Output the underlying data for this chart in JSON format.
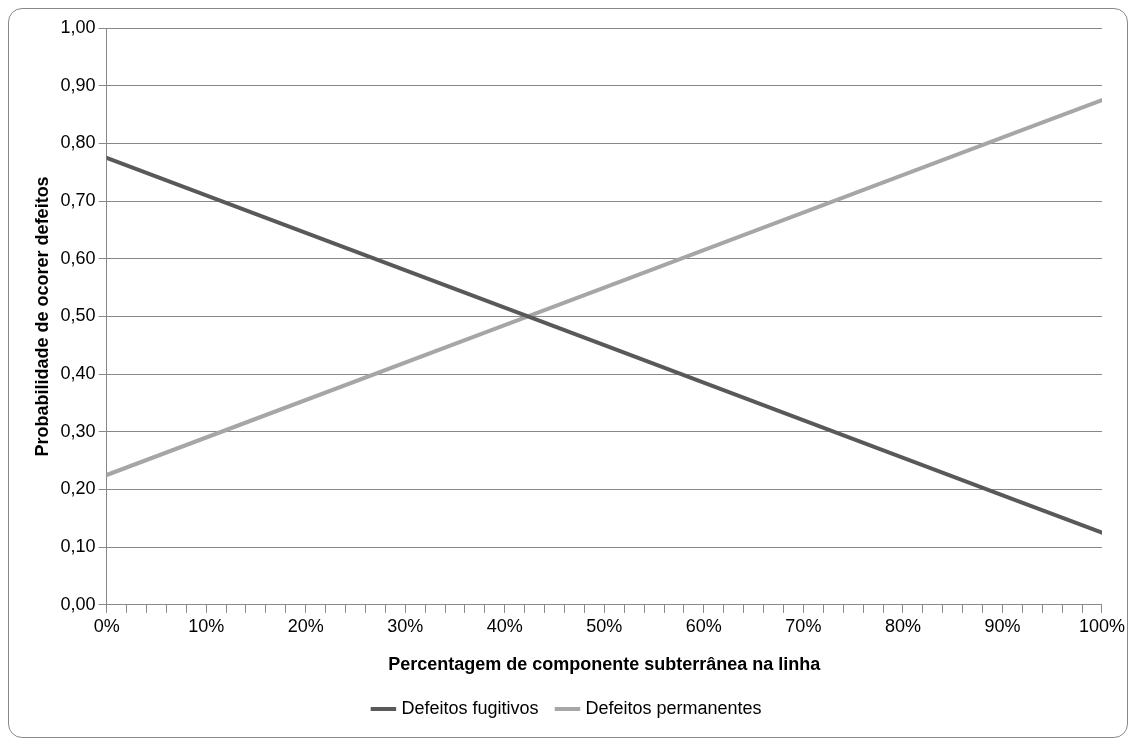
{
  "chart_data": {
    "type": "line",
    "xlabel": "Percentagem de componente subterrânea na linha",
    "ylabel": "Probabilidade de ocorer defeitos",
    "x": [
      0,
      50,
      100
    ],
    "series": [
      {
        "name": "Defeitos fugitivos",
        "color": "#595959",
        "values": [
          0.775,
          0.45,
          0.125
        ]
      },
      {
        "name": "Defeitos permanentes",
        "color": "#a6a6a6",
        "values": [
          0.225,
          0.55,
          0.875
        ]
      }
    ],
    "xlim": [
      0,
      100
    ],
    "xticks": [
      {
        "value": 0,
        "label": "0%"
      },
      {
        "value": 2,
        "label": null
      },
      {
        "value": 4,
        "label": null
      },
      {
        "value": 6,
        "label": null
      },
      {
        "value": 8,
        "label": null
      },
      {
        "value": 10,
        "label": "10%"
      },
      {
        "value": 12,
        "label": null
      },
      {
        "value": 14,
        "label": null
      },
      {
        "value": 16,
        "label": null
      },
      {
        "value": 18,
        "label": null
      },
      {
        "value": 20,
        "label": "20%"
      },
      {
        "value": 22,
        "label": null
      },
      {
        "value": 24,
        "label": null
      },
      {
        "value": 26,
        "label": null
      },
      {
        "value": 28,
        "label": null
      },
      {
        "value": 30,
        "label": "30%"
      },
      {
        "value": 32,
        "label": null
      },
      {
        "value": 34,
        "label": null
      },
      {
        "value": 36,
        "label": null
      },
      {
        "value": 38,
        "label": null
      },
      {
        "value": 40,
        "label": "40%"
      },
      {
        "value": 42,
        "label": null
      },
      {
        "value": 44,
        "label": null
      },
      {
        "value": 46,
        "label": null
      },
      {
        "value": 48,
        "label": null
      },
      {
        "value": 50,
        "label": "50%"
      },
      {
        "value": 52,
        "label": null
      },
      {
        "value": 54,
        "label": null
      },
      {
        "value": 56,
        "label": null
      },
      {
        "value": 58,
        "label": null
      },
      {
        "value": 60,
        "label": "60%"
      },
      {
        "value": 62,
        "label": null
      },
      {
        "value": 64,
        "label": null
      },
      {
        "value": 66,
        "label": null
      },
      {
        "value": 68,
        "label": null
      },
      {
        "value": 70,
        "label": "70%"
      },
      {
        "value": 72,
        "label": null
      },
      {
        "value": 74,
        "label": null
      },
      {
        "value": 76,
        "label": null
      },
      {
        "value": 78,
        "label": null
      },
      {
        "value": 80,
        "label": "80%"
      },
      {
        "value": 82,
        "label": null
      },
      {
        "value": 84,
        "label": null
      },
      {
        "value": 86,
        "label": null
      },
      {
        "value": 88,
        "label": null
      },
      {
        "value": 90,
        "label": "90%"
      },
      {
        "value": 92,
        "label": null
      },
      {
        "value": 94,
        "label": null
      },
      {
        "value": 96,
        "label": null
      },
      {
        "value": 98,
        "label": null
      },
      {
        "value": 100,
        "label": "100%"
      }
    ],
    "ylim": [
      0,
      1
    ],
    "yticks": [
      {
        "value": 0,
        "label": "0,00"
      },
      {
        "value": 0.1,
        "label": "0,10"
      },
      {
        "value": 0.2,
        "label": "0,20"
      },
      {
        "value": 0.3,
        "label": "0,30"
      },
      {
        "value": 0.4,
        "label": "0,40"
      },
      {
        "value": 0.5,
        "label": "0,50"
      },
      {
        "value": 0.6,
        "label": "0,60"
      },
      {
        "value": 0.7,
        "label": "0,70"
      },
      {
        "value": 0.8,
        "label": "0,80"
      },
      {
        "value": 0.9,
        "label": "0,90"
      },
      {
        "value": 1,
        "label": "1,00"
      }
    ],
    "grid": "y",
    "legend": "bottom",
    "marker": "none",
    "line_style": "solid"
  }
}
